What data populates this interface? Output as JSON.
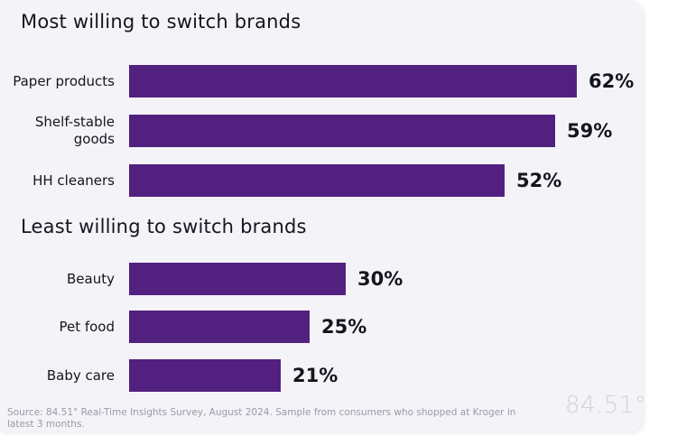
{
  "chart_data": {
    "type": "bar",
    "orientation": "horizontal",
    "unit": "%",
    "xlim": [
      0,
      62
    ],
    "groups": [
      {
        "title": "Most willing to switch brands",
        "categories": [
          "Paper products",
          "Shelf-stable goods",
          "HH cleaners"
        ],
        "values": [
          62,
          59,
          52
        ]
      },
      {
        "title": "Least willing to switch brands",
        "categories": [
          "Beauty",
          "Pet food",
          "Baby care"
        ],
        "values": [
          30,
          25,
          21
        ]
      }
    ],
    "bar_color": "#52217f"
  },
  "footer": {
    "source": "Source: 84.51° Real-Time Insights Survey, August 2024. Sample from consumers who shopped at Kroger in latest 3 months.",
    "logo": "84.51°"
  },
  "colors": {
    "background": "#f4f3f8",
    "text": "#15151f",
    "muted": "#9a99a6"
  }
}
